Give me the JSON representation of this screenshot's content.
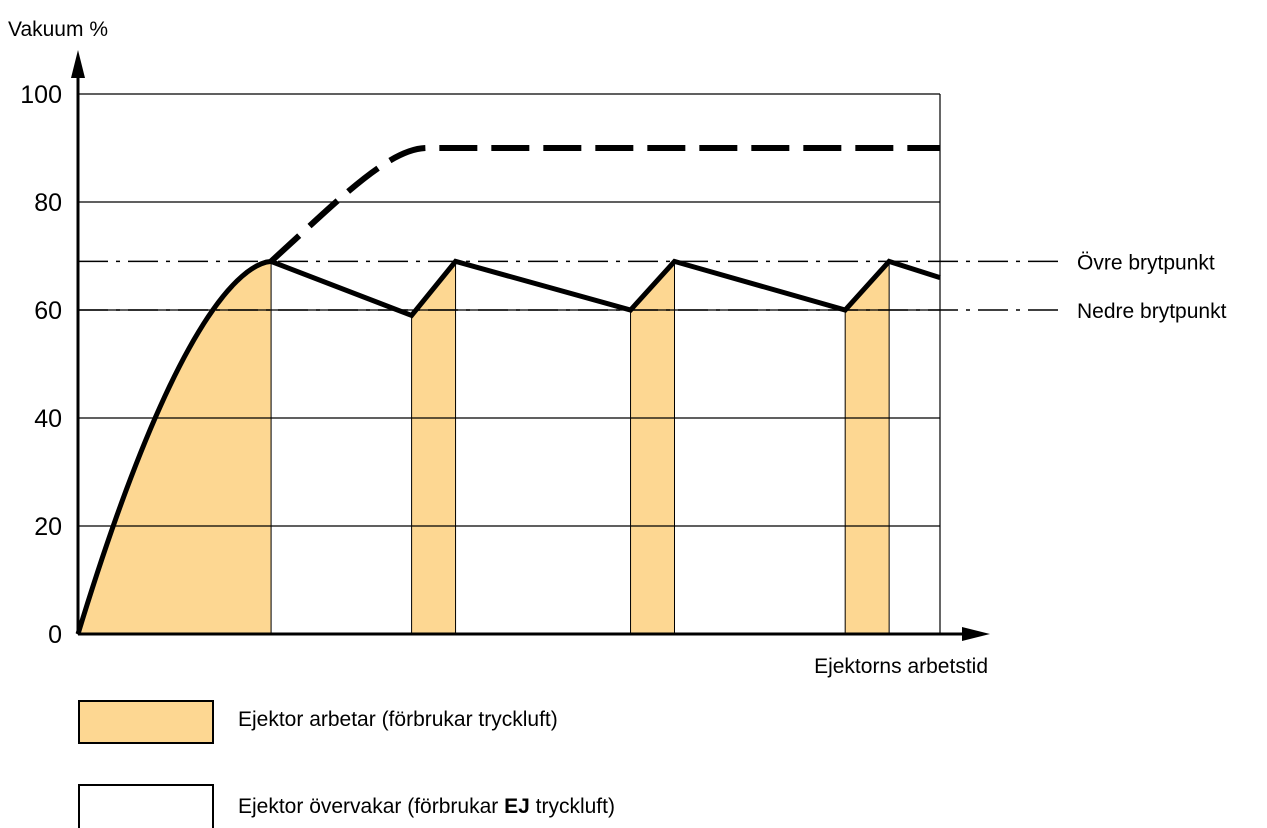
{
  "chart_data": {
    "type": "line",
    "ylabel": "Vakuum %",
    "xlabel": "Ejektorns arbetstid",
    "ylim": [
      0,
      100
    ],
    "yticks": [
      0,
      20,
      40,
      60,
      80,
      100
    ],
    "grid": true,
    "x_unit": "unlabeled time",
    "series": [
      {
        "style": "solid",
        "x": [
          0,
          22.4,
          38.7,
          43.8,
          64.1,
          69.2,
          89.0,
          94.1,
          100
        ],
        "y": [
          0,
          69,
          59,
          69,
          60,
          69,
          60,
          69,
          66
        ]
      },
      {
        "style": "dashed",
        "x": [
          22.4,
          30,
          40.5,
          100
        ],
        "y": [
          69,
          80,
          90,
          90
        ]
      }
    ],
    "reference_lines": [
      {
        "label": "Övre brytpunkt",
        "y": 69
      },
      {
        "label": "Nedre brytpunkt",
        "y": 60
      }
    ],
    "shaded_intervals_x": [
      [
        0,
        22.4
      ],
      [
        38.7,
        43.8
      ],
      [
        64.1,
        69.2
      ],
      [
        89.0,
        94.1
      ]
    ],
    "shade_color": "#fdd792"
  },
  "legend": {
    "working_label": "Ejektor arbetar (förbrukar tryckluft)",
    "monitoring_prefix": "Ejektor övervakar (förbrukar ",
    "monitoring_bold": "EJ",
    "monitoring_suffix": " tryckluft)",
    "working_color": "#fdd792",
    "monitoring_color": "#ffffff"
  }
}
